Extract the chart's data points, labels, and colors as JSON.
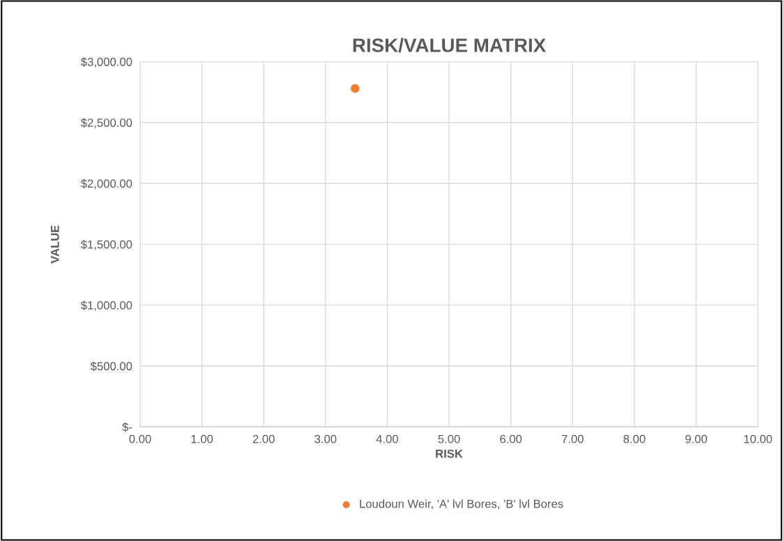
{
  "chart_data": {
    "type": "scatter",
    "title": "RISK/VALUE MATRIX",
    "xlabel": "RISK",
    "ylabel": "VALUE",
    "series": [
      {
        "name": "Loudoun Weir, 'A' lvl Bores, 'B' lvl Bores",
        "color": "#ed7d31",
        "x": [
          3.48
        ],
        "values": [
          2780
        ]
      }
    ],
    "xlim": [
      0,
      10
    ],
    "xticks": [
      {
        "value": 0,
        "label": "0.00"
      },
      {
        "value": 1,
        "label": "1.00"
      },
      {
        "value": 2,
        "label": "2.00"
      },
      {
        "value": 3,
        "label": "3.00"
      },
      {
        "value": 4,
        "label": "4.00"
      },
      {
        "value": 5,
        "label": "5.00"
      },
      {
        "value": 6,
        "label": "6.00"
      },
      {
        "value": 7,
        "label": "7.00"
      },
      {
        "value": 8,
        "label": "8.00"
      },
      {
        "value": 9,
        "label": "9.00"
      },
      {
        "value": 10,
        "label": "10.00"
      }
    ],
    "ylim": [
      0,
      3000
    ],
    "yticks": [
      {
        "value": 0,
        "label": "$-"
      },
      {
        "value": 500,
        "label": "$500.00"
      },
      {
        "value": 1000,
        "label": "$1,000.00"
      },
      {
        "value": 1500,
        "label": "$1,500.00"
      },
      {
        "value": 2000,
        "label": "$2,000.00"
      },
      {
        "value": 2500,
        "label": "$2,500.00"
      },
      {
        "value": 3000,
        "label": "$3,000.00"
      }
    ],
    "grid": true,
    "legend": "bottom",
    "marker": "circle"
  }
}
